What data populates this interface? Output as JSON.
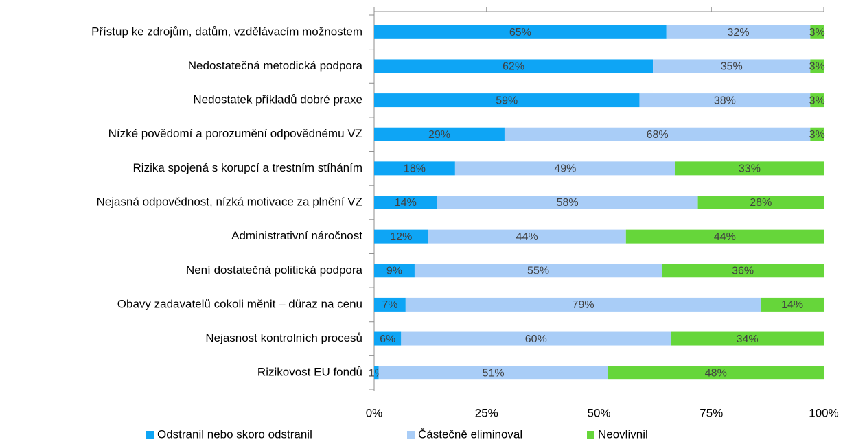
{
  "chart_data": {
    "type": "stacked-bar-horizontal",
    "categories": [
      "Přístup ke zdrojům, datům, vzdělávacím možnostem",
      "Nedostatečná metodická podpora",
      "Nedostatek příkladů dobré praxe",
      "Nízké povědomí a porozumění odpovědnému VZ",
      "Rizika spojená s korupcí a trestním stíháním",
      "Nejasná odpovědnost, nízká motivace za plnění VZ",
      "Administrativní náročnost",
      "Není dostatečná politická podpora",
      "Obavy zadavatelů cokoli měnit – důraz na cenu",
      "Nejasnost kontrolních procesů",
      "Rizikovost EU fondů"
    ],
    "series": [
      {
        "name": "Odstranil nebo skoro odstranil",
        "color": "#0ea5f5",
        "values": [
          65,
          62,
          59,
          29,
          18,
          14,
          12,
          9,
          7,
          6,
          1
        ],
        "value_labels": [
          "65%",
          "62%",
          "59%",
          "29%",
          "18%",
          "14%",
          "12%",
          "9%",
          "7%",
          "6%",
          "1%"
        ]
      },
      {
        "name": "Částečně eliminoval",
        "color": "#a9cdf7",
        "values": [
          32,
          35,
          38,
          68,
          49,
          58,
          44,
          55,
          79,
          60,
          51
        ],
        "value_labels": [
          "32%",
          "35%",
          "38%",
          "68%",
          "49%",
          "58%",
          "44%",
          "55%",
          "79%",
          "60%",
          "51%"
        ]
      },
      {
        "name": "Neovlivnil",
        "color": "#66d63a",
        "values": [
          3,
          3,
          3,
          3,
          33,
          28,
          44,
          36,
          14,
          34,
          48
        ],
        "value_labels": [
          "3%",
          "3%",
          "3%",
          "3%",
          "33%",
          "28%",
          "44%",
          "36%",
          "14%",
          "34%",
          "48%"
        ]
      }
    ],
    "xlim": [
      0,
      100
    ],
    "xticks": [
      {
        "value": 0,
        "label": "0%"
      },
      {
        "value": 25,
        "label": "25%"
      },
      {
        "value": 50,
        "label": "50%"
      },
      {
        "value": 75,
        "label": "75%"
      },
      {
        "value": 100,
        "label": "100%"
      }
    ]
  }
}
